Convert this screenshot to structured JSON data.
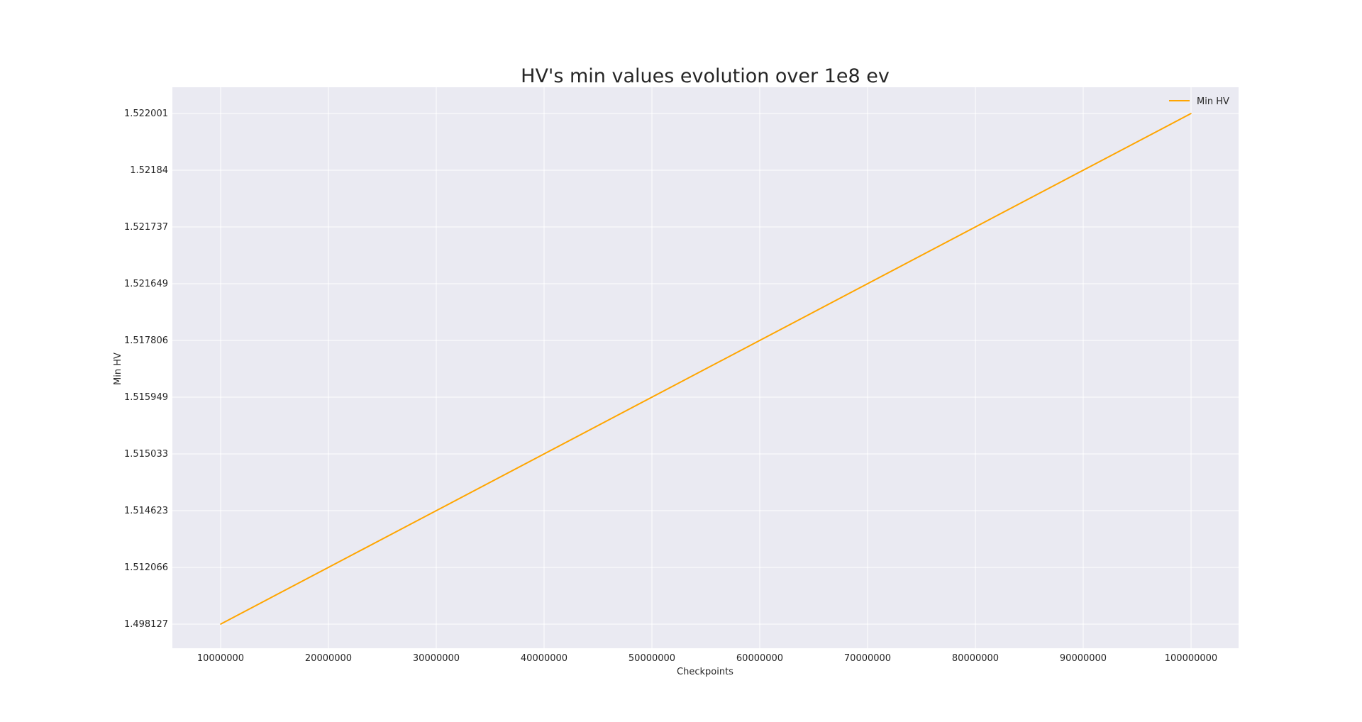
{
  "chart_data": {
    "type": "line",
    "title": "HV's min values evolution over 1e8 ev",
    "xlabel": "Checkpoints",
    "ylabel": "Min HV",
    "x": [
      10000000,
      20000000,
      30000000,
      40000000,
      50000000,
      60000000,
      70000000,
      80000000,
      90000000,
      100000000
    ],
    "x_tick_labels": [
      "10000000",
      "20000000",
      "30000000",
      "40000000",
      "50000000",
      "60000000",
      "70000000",
      "80000000",
      "90000000",
      "100000000"
    ],
    "y_categories": [
      "1.498127",
      "1.512066",
      "1.514623",
      "1.515033",
      "1.515949",
      "1.517806",
      "1.521649",
      "1.521737",
      "1.52184",
      "1.522001"
    ],
    "series": [
      {
        "name": "Min HV",
        "color": "#ffa500",
        "values": [
          "1.498127",
          "1.512066",
          "1.514623",
          "1.515033",
          "1.515949",
          "1.517806",
          "1.521649",
          "1.521737",
          "1.52184",
          "1.522001"
        ]
      }
    ],
    "y_axis_kind": "categorical",
    "grid": true,
    "legend_position": "top-right",
    "background_color": "#eaeaf2",
    "grid_color": "#ffffff"
  }
}
